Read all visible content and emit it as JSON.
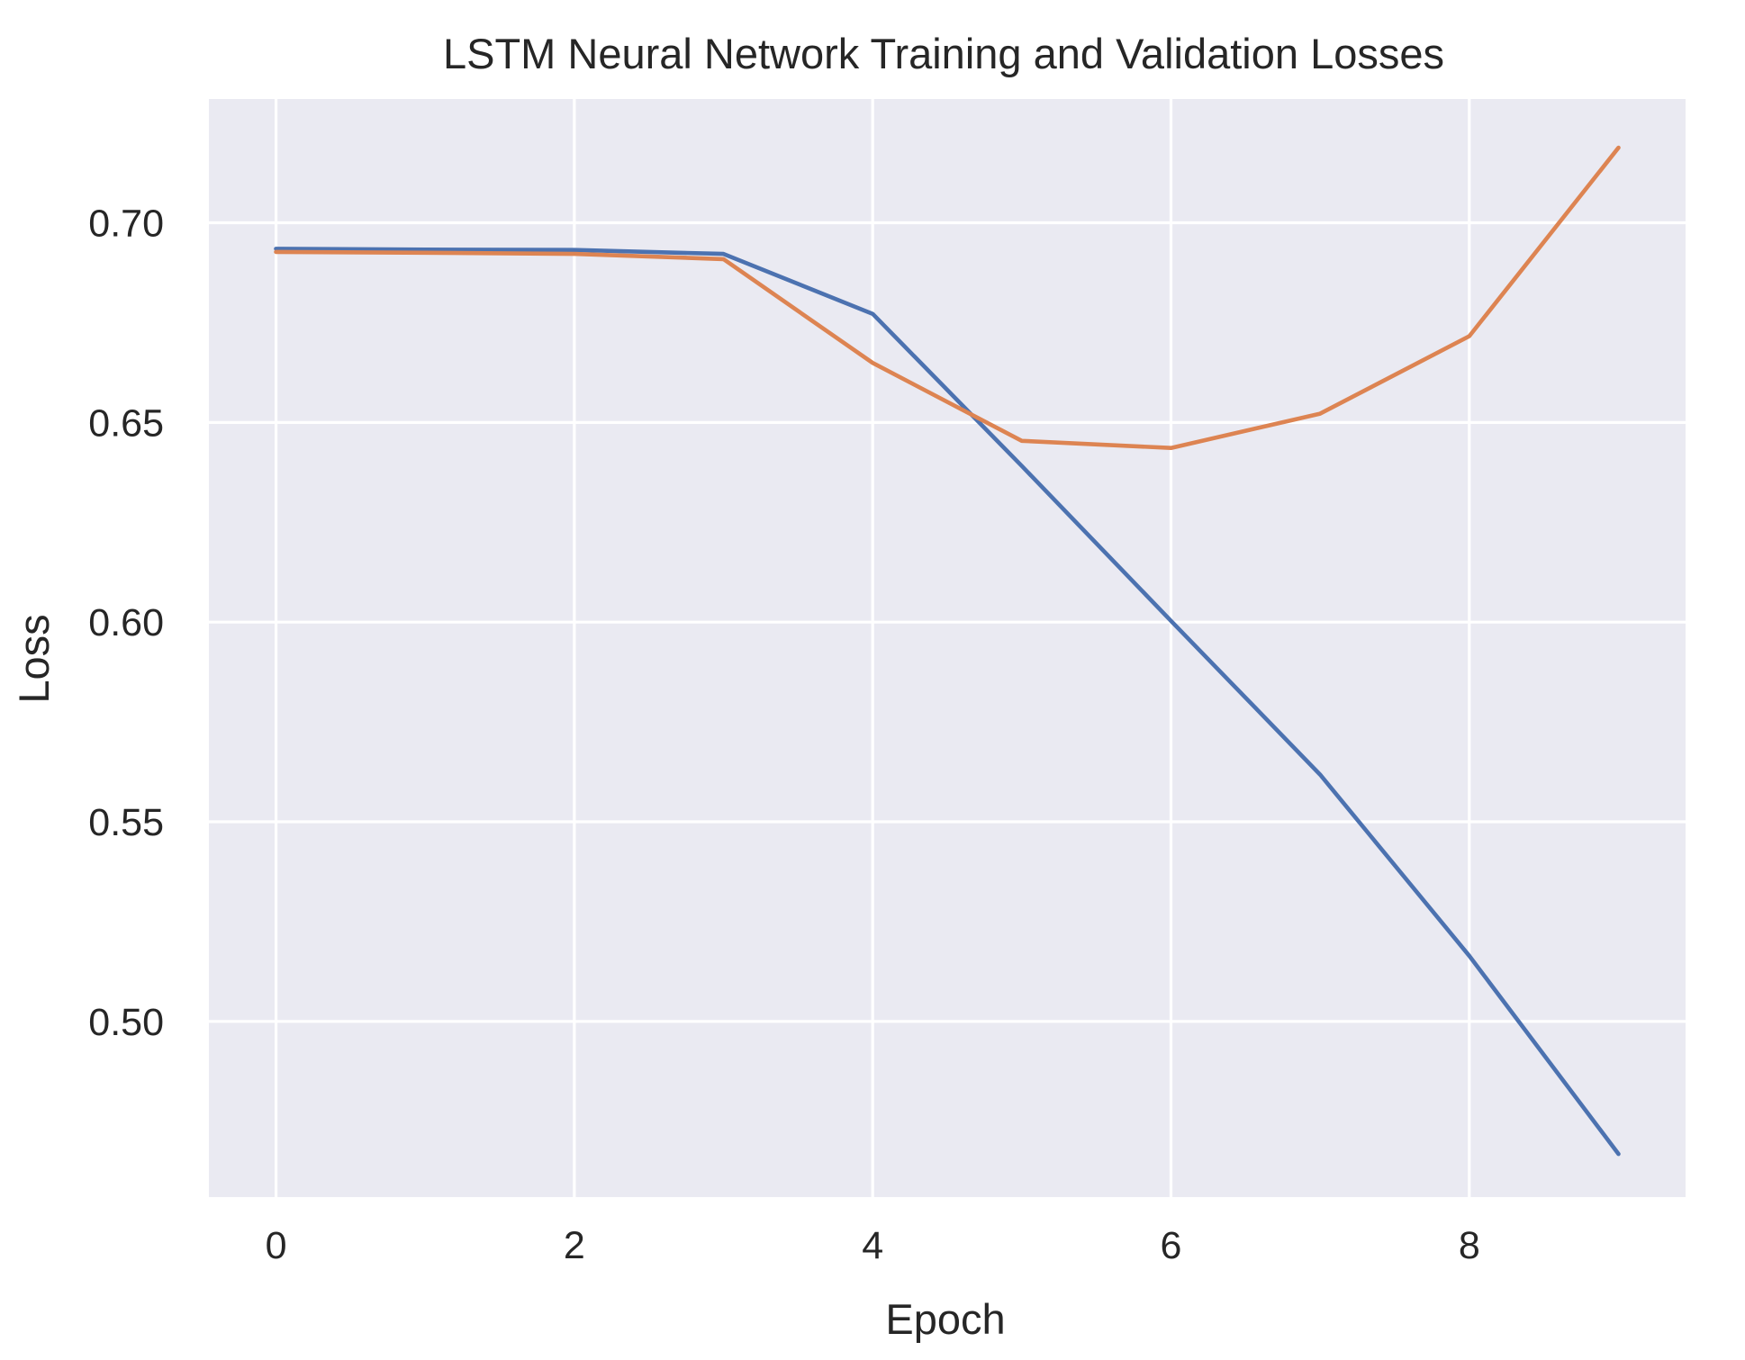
{
  "chart_data": {
    "type": "line",
    "title": "LSTM Neural Network Training and Validation Losses",
    "xlabel": "Epoch",
    "ylabel": "Loss",
    "x": [
      0,
      1,
      2,
      3,
      4,
      5,
      6,
      7,
      8,
      9
    ],
    "series": [
      {
        "color": "#4c72b0",
        "values": [
          0.6935,
          0.6933,
          0.6932,
          0.6922,
          0.6772,
          0.6391,
          0.6003,
          0.5618,
          0.5164,
          0.4668
        ]
      },
      {
        "color": "#dd8452",
        "values": [
          0.6927,
          0.6925,
          0.6922,
          0.6909,
          0.6649,
          0.6454,
          0.6436,
          0.6522,
          0.6716,
          0.7188
        ]
      }
    ],
    "xlim": [
      -0.45,
      9.45
    ],
    "ylim": [
      0.456,
      0.731
    ],
    "xticks": [
      0,
      2,
      4,
      6,
      8
    ],
    "xtick_labels": [
      "0",
      "2",
      "4",
      "6",
      "8"
    ],
    "yticks": [
      0.5,
      0.55,
      0.6,
      0.65,
      0.7
    ],
    "ytick_labels": [
      "0.50",
      "0.55",
      "0.60",
      "0.65",
      "0.70"
    ],
    "grid": true,
    "legend": "none"
  }
}
